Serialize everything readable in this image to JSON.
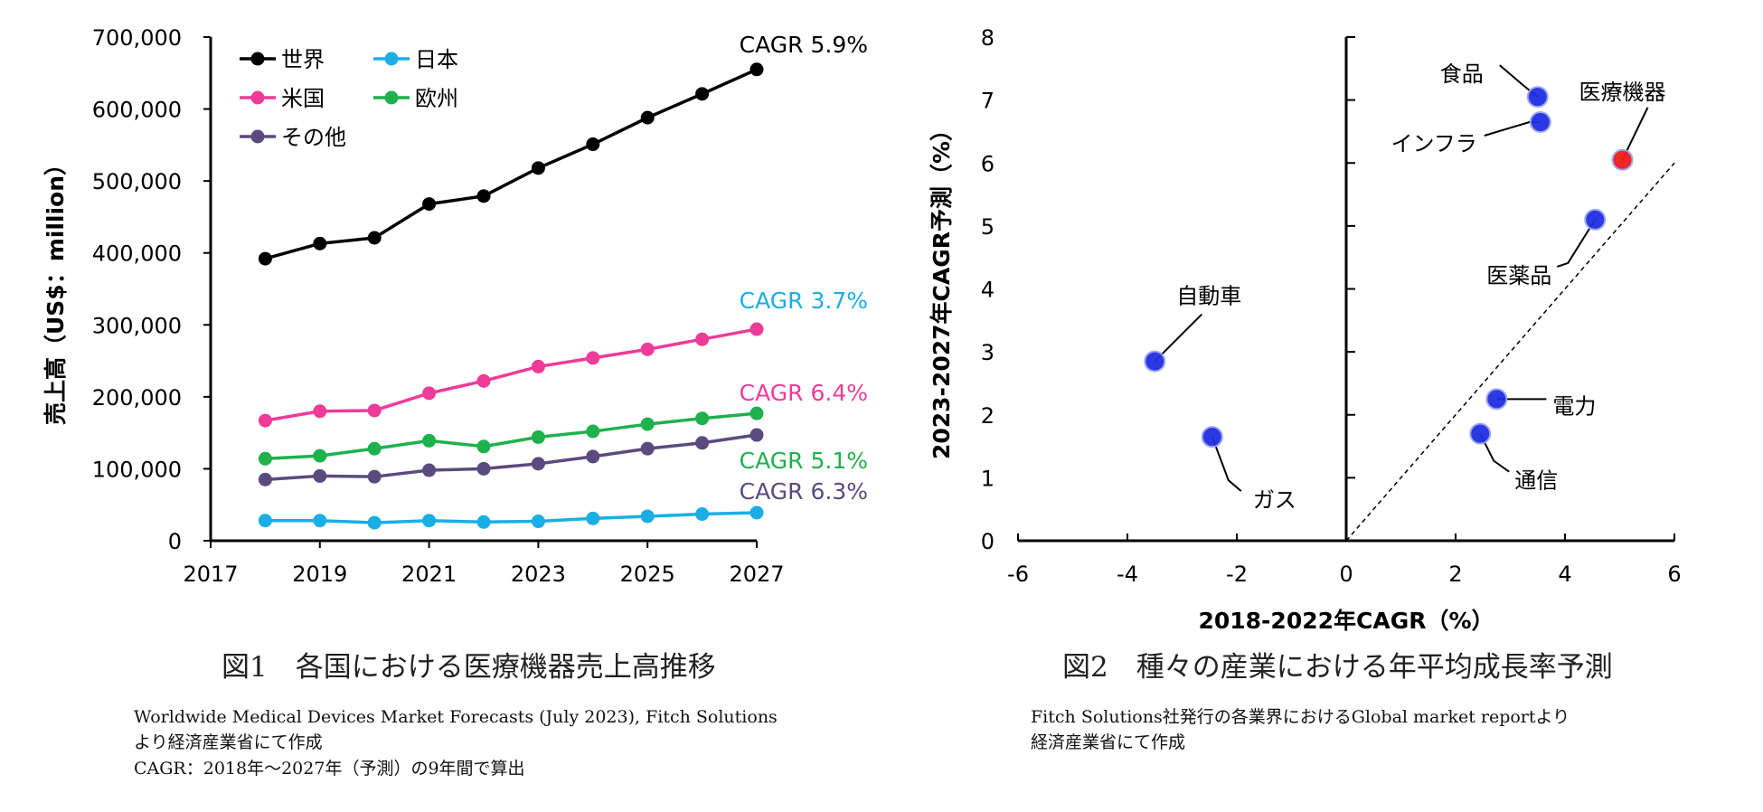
{
  "chart_data": [
    {
      "type": "line",
      "title": "",
      "xlabel": "",
      "ylabel": "売上高（US$：million）",
      "xlim": [
        2017,
        2027
      ],
      "ylim": [
        0,
        700000
      ],
      "xticks": [
        "2017",
        "2019",
        "2021",
        "2023",
        "2025",
        "2027"
      ],
      "yticks": [
        "0",
        "100,000",
        "200,000",
        "300,000",
        "400,000",
        "500,000",
        "600,000",
        "700,000"
      ],
      "grid": false,
      "legend": "top-left",
      "x": [
        2018,
        2019,
        2020,
        2021,
        2022,
        2023,
        2024,
        2025,
        2026,
        2027
      ],
      "series": [
        {
          "name": "世界",
          "color": "#000000",
          "cagr": "CAGR 5.9%",
          "values": [
            392000,
            413000,
            421000,
            468000,
            479000,
            518000,
            551000,
            588000,
            621000,
            655000
          ]
        },
        {
          "name": "日本",
          "color": "#1aaee5",
          "cagr": "CAGR 3.7%",
          "values": [
            28000,
            28000,
            25000,
            28000,
            26000,
            27000,
            31000,
            34000,
            37000,
            39000
          ]
        },
        {
          "name": "米国",
          "color": "#ee3b98",
          "cagr": "CAGR 6.4%",
          "values": [
            167000,
            180000,
            181000,
            205000,
            222000,
            242000,
            254000,
            266000,
            280000,
            294000
          ]
        },
        {
          "name": "欧州",
          "color": "#1eb14c",
          "cagr": "CAGR 5.1%",
          "values": [
            114000,
            118000,
            128000,
            139000,
            131000,
            144000,
            152000,
            162000,
            170000,
            177000
          ]
        },
        {
          "name": "その他",
          "color": "#5b4a7e",
          "cagr": "CAGR 6.3%",
          "values": [
            85000,
            90000,
            89000,
            98000,
            100000,
            107000,
            117000,
            128000,
            136000,
            147000
          ]
        }
      ]
    },
    {
      "type": "scatter",
      "title": "",
      "xlabel": "2018-2022年CAGR（%）",
      "ylabel": "2023-2027年CAGR予測（%）",
      "xlim": [
        -6,
        6
      ],
      "ylim": [
        0,
        8
      ],
      "xticks": [
        "-6",
        "-4",
        "-2",
        "0",
        "2",
        "4",
        "6"
      ],
      "yticks": [
        "0",
        "1",
        "2",
        "3",
        "4",
        "5",
        "6",
        "7",
        "8"
      ],
      "reference_line": {
        "style": "dashed",
        "from": [
          0,
          0
        ],
        "to": [
          6,
          6
        ]
      },
      "points": [
        {
          "label": "食品",
          "x": 3.5,
          "y": 7.05,
          "color": "#1f2fe0"
        },
        {
          "label": "インフラ",
          "x": 3.55,
          "y": 6.65,
          "color": "#1f2fe0"
        },
        {
          "label": "医療機器",
          "x": 5.05,
          "y": 6.05,
          "color": "#ee1c1c"
        },
        {
          "label": "医薬品",
          "x": 4.55,
          "y": 5.1,
          "color": "#1f2fe0"
        },
        {
          "label": "自動車",
          "x": -3.5,
          "y": 2.85,
          "color": "#1f2fe0"
        },
        {
          "label": "電力",
          "x": 2.75,
          "y": 2.25,
          "color": "#1f2fe0"
        },
        {
          "label": "ガス",
          "x": -2.45,
          "y": 1.65,
          "color": "#1f2fe0"
        },
        {
          "label": "通信",
          "x": 2.45,
          "y": 1.7,
          "color": "#1f2fe0"
        }
      ]
    }
  ],
  "captions": {
    "fig1": "図1　各国における医療機器売上高推移",
    "fig2": "図2　種々の産業における年平均成長率予測"
  },
  "sources": {
    "fig1": [
      "Worldwide Medical Devices Market Forecasts (July 2023), Fitch Solutions",
      "より経済産業省にて作成",
      "CAGR：2018年～2027年（予測）の9年間で算出"
    ],
    "fig2": [
      "Fitch Solutions社発行の各業界におけるGlobal market reportより",
      "経済産業省にて作成"
    ]
  }
}
